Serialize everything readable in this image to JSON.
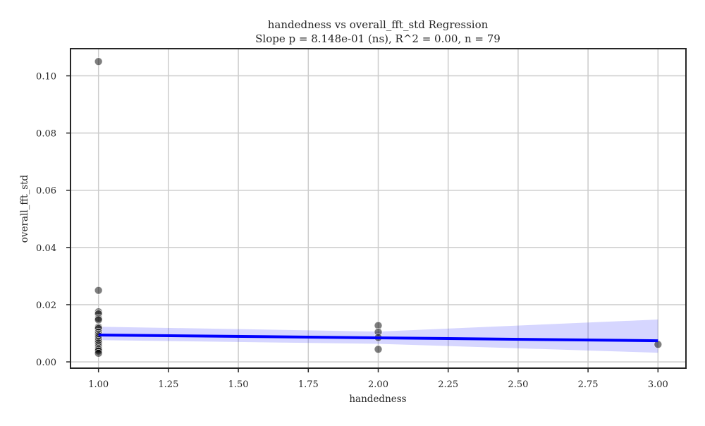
{
  "chart_data": {
    "type": "scatter",
    "title": "handedness vs overall_fft_std Regression",
    "subtitle": "Slope p = 8.148e-01 (ns), R^2 = 0.00, n = 79",
    "xlabel": "handedness",
    "ylabel": "overall_fft_std",
    "xlim": [
      0.9,
      3.1
    ],
    "ylim": [
      -0.0022,
      0.1095
    ],
    "x_ticks": [
      1.0,
      1.25,
      1.5,
      1.75,
      2.0,
      2.25,
      2.5,
      2.75,
      3.0
    ],
    "x_tick_labels": [
      "1.00",
      "1.25",
      "1.50",
      "1.75",
      "2.00",
      "2.25",
      "2.50",
      "2.75",
      "3.00"
    ],
    "y_ticks": [
      0.0,
      0.02,
      0.04,
      0.06,
      0.08,
      0.1
    ],
    "y_tick_labels": [
      "0.00",
      "0.02",
      "0.04",
      "0.06",
      "0.08",
      "0.10"
    ],
    "grid": true,
    "points": [
      {
        "x": 1.0,
        "y": 0.105
      },
      {
        "x": 1.0,
        "y": 0.025
      },
      {
        "x": 1.0,
        "y": 0.0175
      },
      {
        "x": 1.0,
        "y": 0.0168
      },
      {
        "x": 1.0,
        "y": 0.0152
      },
      {
        "x": 1.0,
        "y": 0.0147
      },
      {
        "x": 1.0,
        "y": 0.0122
      },
      {
        "x": 1.0,
        "y": 0.0117
      },
      {
        "x": 1.0,
        "y": 0.0104
      },
      {
        "x": 1.0,
        "y": 0.0097
      },
      {
        "x": 1.0,
        "y": 0.0091
      },
      {
        "x": 1.0,
        "y": 0.0085
      },
      {
        "x": 1.0,
        "y": 0.0078
      },
      {
        "x": 1.0,
        "y": 0.0072
      },
      {
        "x": 1.0,
        "y": 0.0066
      },
      {
        "x": 1.0,
        "y": 0.0059
      },
      {
        "x": 1.0,
        "y": 0.0053
      },
      {
        "x": 1.0,
        "y": 0.0047
      },
      {
        "x": 1.0,
        "y": 0.0043
      },
      {
        "x": 1.0,
        "y": 0.0038
      },
      {
        "x": 1.0,
        "y": 0.003
      },
      {
        "x": 2.0,
        "y": 0.0127
      },
      {
        "x": 2.0,
        "y": 0.0104
      },
      {
        "x": 2.0,
        "y": 0.0085
      },
      {
        "x": 2.0,
        "y": 0.0044
      },
      {
        "x": 3.0,
        "y": 0.0061
      }
    ],
    "regression_line": {
      "x": [
        1.0,
        3.0
      ],
      "y": [
        0.0094,
        0.0074
      ]
    },
    "confidence_band": {
      "x": [
        1.0,
        2.0,
        3.0
      ],
      "upper": [
        0.0123,
        0.0106,
        0.0148
      ],
      "lower": [
        0.0076,
        0.0063,
        0.0032
      ]
    },
    "colors": {
      "points": "#000000",
      "line": "#0000ff",
      "band": "#0000ff",
      "grid": "#cccccc",
      "axes": "#262626"
    }
  }
}
